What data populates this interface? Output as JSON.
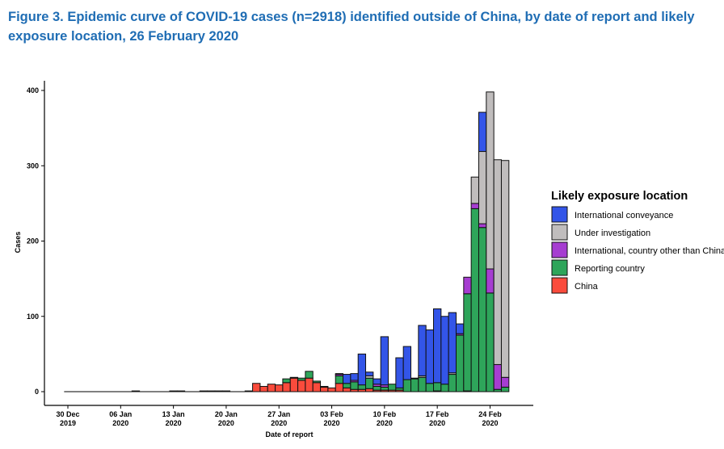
{
  "chart_data": {
    "type": "bar",
    "stacked": true,
    "title": "Figure 3. Epidemic curve of COVID-19 cases (n=2918) identified outside of China, by date of report and likely exposure location, 26 February 2020",
    "xlabel": "Date of report",
    "ylabel": "Cases",
    "ylim": [
      0,
      400
    ],
    "yticks": [
      0,
      100,
      200,
      300,
      400
    ],
    "x_start": "2019-12-30",
    "x_end": "2020-02-26",
    "xticks": [
      {
        "date": "2019-12-30",
        "label1": "30 Dec",
        "label2": "2019"
      },
      {
        "date": "2020-01-06",
        "label1": "06 Jan",
        "label2": "2020"
      },
      {
        "date": "2020-01-13",
        "label1": "13 Jan",
        "label2": "2020"
      },
      {
        "date": "2020-01-20",
        "label1": "20 Jan",
        "label2": "2020"
      },
      {
        "date": "2020-01-27",
        "label1": "27 Jan",
        "label2": "2020"
      },
      {
        "date": "2020-02-03",
        "label1": "03 Feb",
        "label2": "2020"
      },
      {
        "date": "2020-02-10",
        "label1": "10 Feb",
        "label2": "2020"
      },
      {
        "date": "2020-02-17",
        "label1": "17 Feb",
        "label2": "2020"
      },
      {
        "date": "2020-02-24",
        "label1": "24 Feb",
        "label2": "2020"
      }
    ],
    "grid": false,
    "legend_title": "Likely exposure location",
    "legend_position": "right",
    "series": [
      {
        "name": "China",
        "color": "#fa4b3c",
        "values": [
          0,
          0,
          0,
          0,
          0,
          0,
          0,
          0,
          0,
          1,
          0,
          0,
          0,
          0,
          1,
          1,
          0,
          0,
          1,
          1,
          1,
          1,
          0,
          0,
          1,
          11,
          7,
          10,
          9,
          12,
          18,
          15,
          18,
          12,
          6,
          5,
          11,
          5,
          3,
          3,
          4,
          2,
          2,
          2,
          2,
          0,
          0,
          0,
          0,
          1,
          0,
          0,
          0,
          1,
          0,
          0,
          0,
          0,
          0
        ]
      },
      {
        "name": "Reporting country",
        "color": "#2ea55a",
        "values": [
          0,
          0,
          0,
          0,
          0,
          0,
          0,
          0,
          0,
          0,
          0,
          0,
          0,
          0,
          0,
          0,
          0,
          0,
          0,
          0,
          0,
          0,
          0,
          0,
          0,
          0,
          0,
          0,
          0,
          5,
          1,
          3,
          9,
          2,
          1,
          0,
          10,
          6,
          10,
          6,
          14,
          5,
          4,
          8,
          3,
          16,
          17,
          19,
          11,
          11,
          10,
          23,
          75,
          129,
          243,
          218,
          131,
          3,
          6
        ]
      },
      {
        "name": "International, country other than China",
        "color": "#a63dd1",
        "values": [
          0,
          0,
          0,
          0,
          0,
          0,
          0,
          0,
          0,
          0,
          0,
          0,
          0,
          0,
          0,
          0,
          0,
          0,
          0,
          0,
          0,
          0,
          0,
          0,
          0,
          0,
          0,
          0,
          0,
          0,
          0,
          0,
          0,
          0,
          0,
          0,
          2,
          0,
          2,
          0,
          0,
          3,
          3,
          0,
          0,
          0,
          0,
          0,
          0,
          0,
          0,
          0,
          2,
          22,
          7,
          5,
          32,
          33,
          13
        ]
      },
      {
        "name": "Under investigation",
        "color": "#c0bdbd",
        "values": [
          0,
          0,
          0,
          0,
          0,
          0,
          0,
          0,
          0,
          0,
          0,
          0,
          0,
          0,
          0,
          0,
          0,
          0,
          0,
          0,
          0,
          0,
          0,
          0,
          0,
          0,
          0,
          0,
          0,
          0,
          0,
          0,
          0,
          0,
          0,
          0,
          1,
          0,
          0,
          0,
          3,
          0,
          0,
          0,
          0,
          0,
          0,
          2,
          0,
          0,
          0,
          2,
          0,
          0,
          35,
          96,
          235,
          272,
          288
        ]
      },
      {
        "name": "International conveyance",
        "color": "#3355e8",
        "values": [
          0,
          0,
          0,
          0,
          0,
          0,
          0,
          0,
          0,
          0,
          0,
          0,
          0,
          0,
          0,
          0,
          0,
          0,
          0,
          0,
          0,
          0,
          0,
          0,
          0,
          0,
          0,
          0,
          0,
          0,
          0,
          0,
          0,
          0,
          0,
          0,
          0,
          12,
          9,
          41,
          5,
          7,
          64,
          0,
          40,
          44,
          1,
          67,
          71,
          98,
          90,
          80,
          13,
          0,
          0,
          52,
          0,
          0,
          0
        ]
      }
    ],
    "legend_order": [
      "International conveyance",
      "Under investigation",
      "International, country other than China",
      "Reporting country",
      "China"
    ]
  }
}
